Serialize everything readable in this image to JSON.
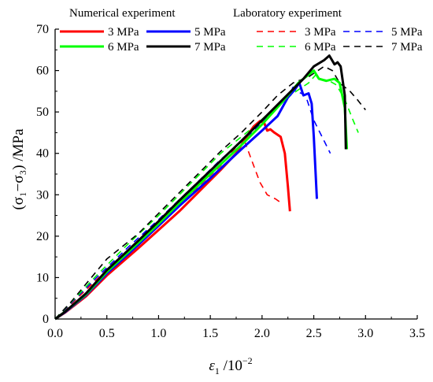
{
  "chart_data": {
    "type": "line",
    "xlabel_main": "ε",
    "xlabel_sub": "1",
    "xlabel_unit": " /10",
    "xlabel_exp": "−2",
    "ylabel_text": "(σ₁−σ₃) /MPa",
    "xlim": [
      0,
      3.5
    ],
    "ylim": [
      0,
      70
    ],
    "x_ticks": [
      "0.0",
      "0.5",
      "1.0",
      "1.5",
      "2.0",
      "2.5",
      "3.0",
      "3.5"
    ],
    "y_ticks": [
      "0",
      "10",
      "20",
      "30",
      "40",
      "50",
      "60",
      "70"
    ],
    "grid": false,
    "legend_groups": {
      "numerical": "Numerical experiment",
      "laboratory": "Laboratory experiment"
    },
    "legend_placement": "top",
    "colors": {
      "3": "#ff0000",
      "5": "#0000ff",
      "6": "#00ff00",
      "7": "#000000"
    },
    "series": [
      {
        "name": "3 MPa",
        "group": "numerical",
        "key": "3",
        "style": "solid",
        "points": [
          [
            0,
            0
          ],
          [
            0.1,
            1.6
          ],
          [
            0.3,
            5.5
          ],
          [
            0.5,
            10.5
          ],
          [
            0.8,
            17
          ],
          [
            1.0,
            21.5
          ],
          [
            1.2,
            26
          ],
          [
            1.4,
            31
          ],
          [
            1.6,
            36
          ],
          [
            1.75,
            40
          ],
          [
            1.85,
            44
          ],
          [
            1.92,
            46.5
          ],
          [
            1.98,
            47.8
          ],
          [
            2.02,
            47.4
          ],
          [
            2.05,
            45.5
          ],
          [
            2.08,
            45.8
          ],
          [
            2.12,
            45
          ],
          [
            2.18,
            44
          ],
          [
            2.22,
            40
          ],
          [
            2.25,
            32
          ],
          [
            2.27,
            26
          ]
        ]
      },
      {
        "name": "5 MPa",
        "group": "numerical",
        "key": "5",
        "style": "solid",
        "points": [
          [
            0,
            0
          ],
          [
            0.1,
            1.7
          ],
          [
            0.3,
            5.8
          ],
          [
            0.5,
            11
          ],
          [
            0.8,
            17.8
          ],
          [
            1.0,
            22.5
          ],
          [
            1.2,
            27.3
          ],
          [
            1.5,
            34
          ],
          [
            1.8,
            41
          ],
          [
            2.0,
            45.5
          ],
          [
            2.15,
            49
          ],
          [
            2.25,
            53.5
          ],
          [
            2.32,
            55.5
          ],
          [
            2.36,
            57
          ],
          [
            2.4,
            54
          ],
          [
            2.45,
            54.5
          ],
          [
            2.48,
            52
          ],
          [
            2.5,
            44
          ],
          [
            2.53,
            29
          ]
        ]
      },
      {
        "name": "6 MPa",
        "group": "numerical",
        "key": "6",
        "style": "solid",
        "points": [
          [
            0,
            0
          ],
          [
            0.1,
            1.8
          ],
          [
            0.3,
            6
          ],
          [
            0.5,
            11.4
          ],
          [
            0.8,
            18.3
          ],
          [
            1.0,
            23
          ],
          [
            1.2,
            28
          ],
          [
            1.5,
            35
          ],
          [
            1.8,
            42
          ],
          [
            2.0,
            47
          ],
          [
            2.2,
            52.5
          ],
          [
            2.35,
            57
          ],
          [
            2.45,
            59
          ],
          [
            2.5,
            60
          ],
          [
            2.55,
            58
          ],
          [
            2.62,
            57.5
          ],
          [
            2.7,
            58
          ],
          [
            2.75,
            57
          ],
          [
            2.8,
            51
          ],
          [
            2.82,
            41
          ]
        ]
      },
      {
        "name": "7 MPa",
        "group": "numerical",
        "key": "7",
        "style": "solid",
        "points": [
          [
            0,
            0
          ],
          [
            0.1,
            1.8
          ],
          [
            0.3,
            6.2
          ],
          [
            0.5,
            11.8
          ],
          [
            0.8,
            18.8
          ],
          [
            1.0,
            23.6
          ],
          [
            1.2,
            28.6
          ],
          [
            1.5,
            35.8
          ],
          [
            1.8,
            43
          ],
          [
            2.0,
            48
          ],
          [
            2.2,
            53
          ],
          [
            2.4,
            58
          ],
          [
            2.5,
            61
          ],
          [
            2.6,
            62.5
          ],
          [
            2.65,
            63.6
          ],
          [
            2.7,
            61.5
          ],
          [
            2.73,
            62
          ],
          [
            2.76,
            61
          ],
          [
            2.8,
            54
          ],
          [
            2.81,
            41
          ]
        ]
      },
      {
        "name": "3 MPa",
        "group": "laboratory",
        "key": "3",
        "style": "dashed",
        "points": [
          [
            0,
            0
          ],
          [
            0.15,
            3.5
          ],
          [
            0.4,
            9.5
          ],
          [
            0.7,
            16.5
          ],
          [
            1.0,
            23
          ],
          [
            1.3,
            30
          ],
          [
            1.6,
            37
          ],
          [
            1.78,
            42.5
          ],
          [
            1.82,
            43.7
          ],
          [
            1.86,
            41
          ],
          [
            1.92,
            37
          ],
          [
            1.98,
            33
          ],
          [
            2.05,
            30
          ],
          [
            2.13,
            29
          ],
          [
            2.17,
            28.3
          ]
        ]
      },
      {
        "name": "5 MPa",
        "group": "laboratory",
        "key": "5",
        "style": "dashed",
        "points": [
          [
            0,
            0
          ],
          [
            0.15,
            3.7
          ],
          [
            0.4,
            10
          ],
          [
            0.7,
            17.2
          ],
          [
            1.0,
            24
          ],
          [
            1.3,
            31.2
          ],
          [
            1.6,
            38.5
          ],
          [
            1.9,
            45
          ],
          [
            2.1,
            50
          ],
          [
            2.25,
            54
          ],
          [
            2.3,
            56
          ],
          [
            2.33,
            55
          ],
          [
            2.38,
            54.5
          ],
          [
            2.42,
            54
          ],
          [
            2.5,
            48
          ],
          [
            2.58,
            44
          ],
          [
            2.66,
            40
          ]
        ]
      },
      {
        "name": "6 MPa",
        "group": "laboratory",
        "key": "6",
        "style": "dashed",
        "points": [
          [
            0,
            0
          ],
          [
            0.15,
            3.9
          ],
          [
            0.4,
            10.5
          ],
          [
            0.7,
            18
          ],
          [
            1.0,
            25
          ],
          [
            1.3,
            32.5
          ],
          [
            1.6,
            40
          ],
          [
            1.9,
            46
          ],
          [
            2.1,
            50.5
          ],
          [
            2.3,
            54.5
          ],
          [
            2.45,
            57
          ],
          [
            2.52,
            59
          ],
          [
            2.57,
            58
          ],
          [
            2.65,
            57.5
          ],
          [
            2.72,
            56.5
          ],
          [
            2.8,
            53
          ],
          [
            2.88,
            48
          ],
          [
            2.93,
            45
          ]
        ]
      },
      {
        "name": "7 MPa",
        "group": "laboratory",
        "key": "7",
        "style": "dashed",
        "points": [
          [
            0,
            0
          ],
          [
            0.15,
            4
          ],
          [
            0.35,
            10
          ],
          [
            0.5,
            14.5
          ],
          [
            0.8,
            20.5
          ],
          [
            1.0,
            25.5
          ],
          [
            1.3,
            33
          ],
          [
            1.6,
            40.5
          ],
          [
            1.8,
            45
          ],
          [
            2.0,
            50
          ],
          [
            2.15,
            54
          ],
          [
            2.3,
            57
          ],
          [
            2.45,
            58.5
          ],
          [
            2.6,
            61
          ],
          [
            2.68,
            60
          ],
          [
            2.75,
            57
          ],
          [
            2.85,
            55
          ],
          [
            2.92,
            53
          ],
          [
            3.0,
            50.5
          ]
        ]
      }
    ]
  }
}
